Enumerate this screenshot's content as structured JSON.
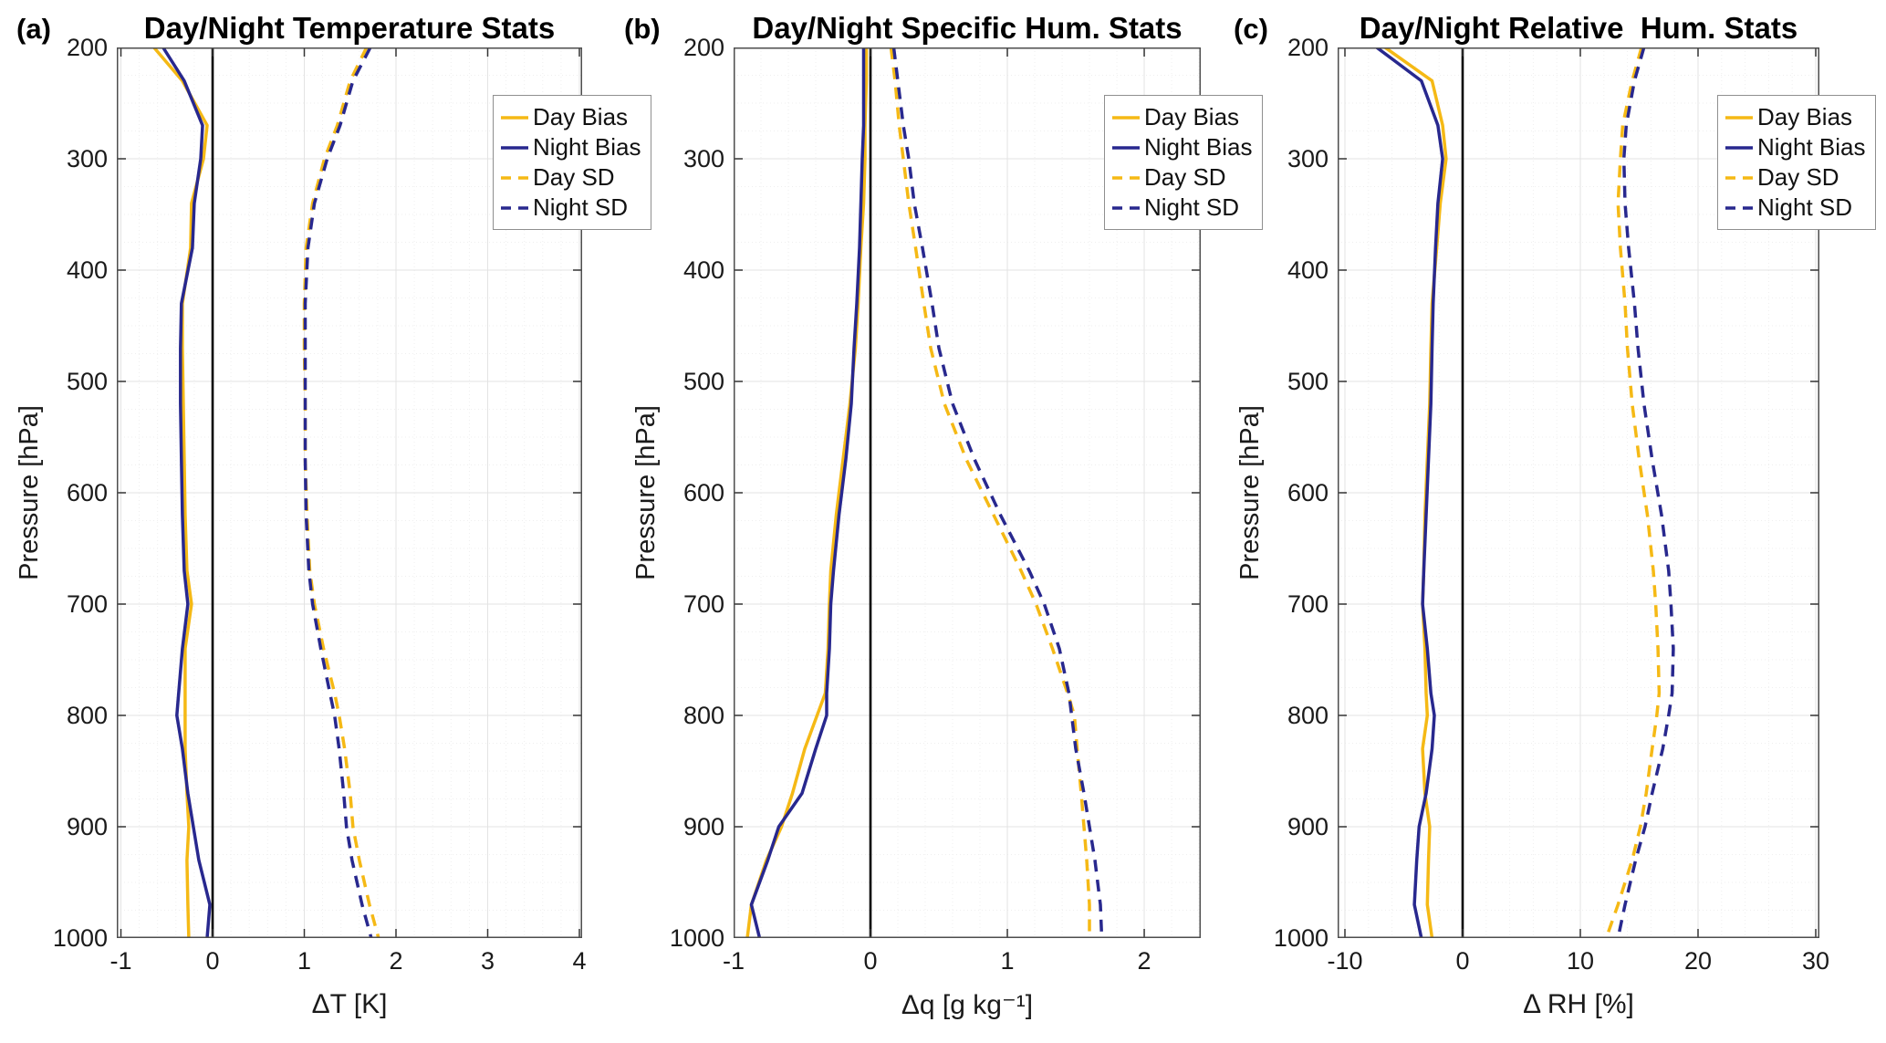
{
  "figure_background": "#ffffff",
  "chart_data": {
    "type": "line",
    "orientation": "vertical-profile",
    "grid": true,
    "colors": {
      "day": "#F5B915",
      "night": "#28288E",
      "zero_line": "#000000",
      "axis_box": "#4d4d4d",
      "grid_major": "#e3e3e3",
      "grid_minor": "#efefef",
      "tick": "#333333"
    },
    "y_axis": {
      "label": "Pressure [hPa]",
      "ticks": [
        200,
        300,
        400,
        500,
        600,
        700,
        800,
        900,
        1000
      ],
      "range": [
        200,
        1000
      ],
      "inverted": true,
      "minor_step": 25
    },
    "pressure_levels": [
      200,
      230,
      270,
      300,
      340,
      380,
      430,
      470,
      520,
      570,
      620,
      670,
      700,
      740,
      780,
      800,
      830,
      870,
      900,
      930,
      970,
      1000
    ],
    "legend": {
      "position": "top-right",
      "items": [
        {
          "label": "Day Bias",
          "series": "day_bias",
          "color_key": "day",
          "style": "solid"
        },
        {
          "label": "Night Bias",
          "series": "night_bias",
          "color_key": "night",
          "style": "solid"
        },
        {
          "label": "Day SD",
          "series": "day_sd",
          "color_key": "day",
          "style": "dashed"
        },
        {
          "label": "Night SD",
          "series": "night_sd",
          "color_key": "night",
          "style": "dashed"
        }
      ]
    },
    "panels": [
      {
        "letter": "(a)",
        "title": "Day/Night Temperature Stats",
        "xlabel": "ΔT [K]",
        "xlim": [
          -1.045,
          4.03
        ],
        "xticks": [
          -1,
          0,
          1,
          2,
          3,
          4
        ],
        "x_minor_step": 0.2,
        "series": {
          "day_bias": [
            -0.64,
            -0.33,
            -0.06,
            -0.1,
            -0.23,
            -0.24,
            -0.33,
            -0.33,
            -0.32,
            -0.31,
            -0.3,
            -0.28,
            -0.23,
            -0.3,
            -0.3,
            -0.3,
            -0.3,
            -0.28,
            -0.26,
            -0.28,
            -0.27,
            -0.26
          ],
          "night_bias": [
            -0.54,
            -0.31,
            -0.11,
            -0.13,
            -0.2,
            -0.22,
            -0.34,
            -0.35,
            -0.35,
            -0.34,
            -0.33,
            -0.31,
            -0.27,
            -0.33,
            -0.37,
            -0.39,
            -0.33,
            -0.27,
            -0.21,
            -0.15,
            -0.03,
            -0.06
          ],
          "day_sd": [
            1.68,
            1.5,
            1.36,
            1.22,
            1.09,
            1.02,
            1.0,
            1.0,
            1.01,
            1.01,
            1.03,
            1.06,
            1.11,
            1.21,
            1.33,
            1.38,
            1.44,
            1.5,
            1.53,
            1.6,
            1.71,
            1.81
          ],
          "night_sd": [
            1.72,
            1.53,
            1.39,
            1.25,
            1.11,
            1.04,
            1.01,
            1.01,
            1.01,
            1.01,
            1.02,
            1.05,
            1.09,
            1.18,
            1.28,
            1.33,
            1.38,
            1.43,
            1.46,
            1.52,
            1.63,
            1.73
          ]
        }
      },
      {
        "letter": "(b)",
        "title": "Day/Night Specific Hum. Stats",
        "xlabel": "Δq [g kg⁻¹]",
        "xlim": [
          -1.0,
          2.413
        ],
        "xticks": [
          -1,
          0,
          1,
          2
        ],
        "x_minor_step": 0.2,
        "series": {
          "day_bias": [
            -0.03,
            -0.03,
            -0.04,
            -0.04,
            -0.05,
            -0.07,
            -0.09,
            -0.11,
            -0.15,
            -0.2,
            -0.25,
            -0.29,
            -0.3,
            -0.31,
            -0.33,
            -0.39,
            -0.48,
            -0.57,
            -0.65,
            -0.76,
            -0.87,
            -0.9
          ],
          "night_bias": [
            -0.05,
            -0.05,
            -0.05,
            -0.06,
            -0.07,
            -0.08,
            -0.1,
            -0.12,
            -0.14,
            -0.18,
            -0.23,
            -0.27,
            -0.29,
            -0.3,
            -0.32,
            -0.32,
            -0.4,
            -0.5,
            -0.67,
            -0.75,
            -0.87,
            -0.81
          ],
          "day_sd": [
            0.15,
            0.18,
            0.21,
            0.24,
            0.28,
            0.33,
            0.39,
            0.44,
            0.54,
            0.7,
            0.9,
            1.1,
            1.21,
            1.33,
            1.44,
            1.49,
            1.51,
            1.54,
            1.56,
            1.58,
            1.6,
            1.6
          ],
          "night_sd": [
            0.17,
            0.2,
            0.24,
            0.28,
            0.32,
            0.38,
            0.45,
            0.5,
            0.6,
            0.76,
            0.95,
            1.16,
            1.27,
            1.38,
            1.45,
            1.47,
            1.5,
            1.56,
            1.6,
            1.64,
            1.68,
            1.69
          ]
        }
      },
      {
        "letter": "(c)",
        "title": "Day/Night Relative  Hum. Stats",
        "xlabel": "Δ RH [%]",
        "xlim": [
          -10.62,
          30.31
        ],
        "xticks": [
          -10,
          0,
          10,
          20,
          30
        ],
        "x_minor_step": 2,
        "series": {
          "day_bias": [
            -6.6,
            -2.6,
            -1.7,
            -1.4,
            -1.9,
            -2.2,
            -2.6,
            -2.7,
            -2.8,
            -3.0,
            -3.2,
            -3.3,
            -3.4,
            -3.2,
            -3.1,
            -3.0,
            -3.4,
            -3.2,
            -2.8,
            -2.9,
            -3.0,
            -2.6
          ],
          "night_bias": [
            -7.3,
            -3.5,
            -2.1,
            -1.7,
            -2.1,
            -2.3,
            -2.5,
            -2.6,
            -2.7,
            -2.9,
            -3.1,
            -3.3,
            -3.4,
            -3.0,
            -2.7,
            -2.4,
            -2.6,
            -3.1,
            -3.7,
            -3.9,
            -4.1,
            -3.5
          ],
          "day_sd": [
            15.2,
            14.4,
            13.6,
            13.4,
            13.2,
            13.4,
            13.8,
            14.0,
            14.4,
            15.0,
            15.7,
            16.2,
            16.4,
            16.6,
            16.7,
            16.5,
            16.1,
            15.6,
            15.1,
            14.4,
            13.2,
            12.2
          ],
          "night_sd": [
            15.4,
            14.6,
            13.9,
            13.7,
            13.8,
            14.1,
            14.6,
            14.9,
            15.4,
            16.1,
            16.9,
            17.5,
            17.7,
            17.9,
            17.8,
            17.5,
            17.0,
            16.1,
            15.5,
            14.7,
            13.8,
            13.2
          ]
        }
      }
    ]
  }
}
